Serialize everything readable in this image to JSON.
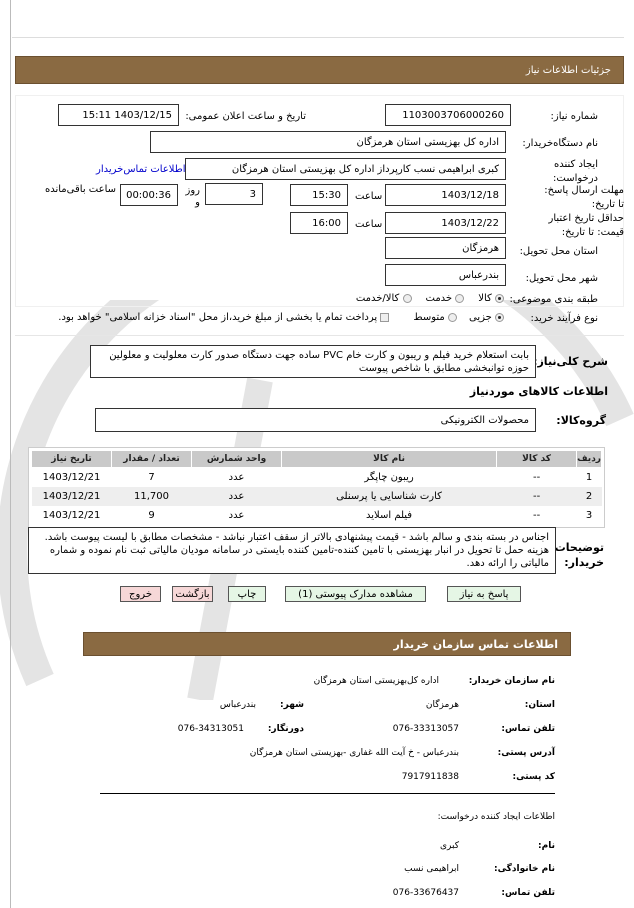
{
  "header": {
    "title": "جزئیات اطلاعات نیاز"
  },
  "form": {
    "need_number_label": "شماره نیاز:",
    "need_number": "1103003706000260",
    "announce_label": "تاریخ و ساعت اعلان عمومی:",
    "announce_value": "1403/12/15 15:11",
    "buyer_label": "نام دستگاه‌خریدار:",
    "buyer": "اداره کل بهزیستی استان هرمزگان",
    "creator_label": "ایجاد کننده درخواست:",
    "creator": "کبری ابراهیمی نسب کارپرداز اداره کل بهزیستی استان هرمزگان",
    "contact_link": "اطلاعات تماس‌خریدار",
    "deadline_label": "مهلت ارسال پاسخ: تا تاریخ:",
    "deadline_date": "1403/12/18",
    "time_label": "ساعت",
    "deadline_time": "15:30",
    "days": "3",
    "days_label": "روز و",
    "remaining": "00:00:36",
    "remaining_label": "ساعت باقی‌مانده",
    "validity_label": "حداقل تاریخ اعتبار قیمت: تا تاریخ:",
    "validity_date": "1403/12/22",
    "validity_time": "16:00",
    "province_label": "استان محل تحویل:",
    "province": "هرمزگان",
    "city_label": "شهر محل تحویل:",
    "city": "بندرعباس",
    "category_label": "طبقه بندی موضوعی:",
    "category_options": [
      "کالا",
      "خدمت",
      "کالا/خدمت"
    ],
    "category_selected": "کالا",
    "process_label": "نوع فرآیند خرید:",
    "process_options": [
      "جزیی",
      "متوسط"
    ],
    "process_selected": "جزیی",
    "treasury_note": "پرداخت تمام یا بخشی از مبلغ خرید،از محل \"اسناد خزانه اسلامی\" خواهد بود.",
    "description_label": "شرح کلی‌نیاز:",
    "description": "بابت استعلام خرید فیلم و ریبون و کارت خام PVC ساده جهت دستگاه صدور کارت معلولیت و معلولین حوزه توانبخشی مطابق با شاخص پیوست",
    "goods_title": "اطلاعات کالاهای موردنیاز",
    "group_label": "گروه‌کالا:",
    "group": "محصولات الکترونیکی"
  },
  "table": {
    "headers": [
      "ردیف",
      "کد کالا",
      "نام کالا",
      "واحد شمارش",
      "تعداد / مقدار",
      "تاریخ نیاز"
    ],
    "rows": [
      {
        "n": "1",
        "code": "--",
        "name": "ریبون چاپگر",
        "unit": "عدد",
        "qty": "7",
        "date": "1403/12/21"
      },
      {
        "n": "2",
        "code": "--",
        "name": "کارت شناسایی یا پرسنلی",
        "unit": "عدد",
        "qty": "11,700",
        "date": "1403/12/21"
      },
      {
        "n": "3",
        "code": "--",
        "name": "فیلم اسلاید",
        "unit": "عدد",
        "qty": "9",
        "date": "1403/12/21"
      }
    ]
  },
  "notes": {
    "label": "توضیحات خریدار:",
    "text": "اجناس در بسته بندی و سالم باشد - قیمت پیشنهادی بالاتر از سقف اعتبار نباشد - مشخصات مطابق با لیست پیوست باشد. هزینه حمل تا تحویل در انبار بهزیستی با تامین کننده-تامین کننده بایستی در سامانه مودیان مالیاتی ثبت نام نموده و شماره مالیاتی را ارائه دهد."
  },
  "buttons": {
    "reply": "پاسخ به نیاز",
    "attachments": "مشاهده مدارک پیوستی (1)",
    "print": "چاپ",
    "back": "بازگشت",
    "exit": "خروج"
  },
  "contact": {
    "title": "اطلاعات تماس سازمان خریدار",
    "org_label": "نام سازمان خریدار:",
    "org": "اداره کل‌بهزیستی استان هرمزگان",
    "province_label": "استان:",
    "province": "هرمزگان",
    "city_label": "شهر:",
    "city": "بندرعباس",
    "phone_label": "تلفن تماس:",
    "phone": "076-33313057",
    "fax_label": "دورنگار:",
    "fax": "076-34313051",
    "address_label": "آدرس پستی:",
    "address": "بندرعباس - خ آیت الله غفاری -بهزیستی استان هرمزگان",
    "postal_label": "کد پستی:",
    "postal": "7917911838",
    "creator_title": "اطلاعات ایجاد کننده درخواست:",
    "name_label": "نام:",
    "name": "کبری",
    "family_label": "نام خانوادگی:",
    "family": "ابراهیمی نسب",
    "cphone_label": "تلفن تماس:",
    "cphone": "076-33676437"
  },
  "colors": {
    "header": "#8a6a42",
    "link": "#0000cc",
    "green_button": "#e5f6e5",
    "red_button": "#f6d7d7"
  }
}
